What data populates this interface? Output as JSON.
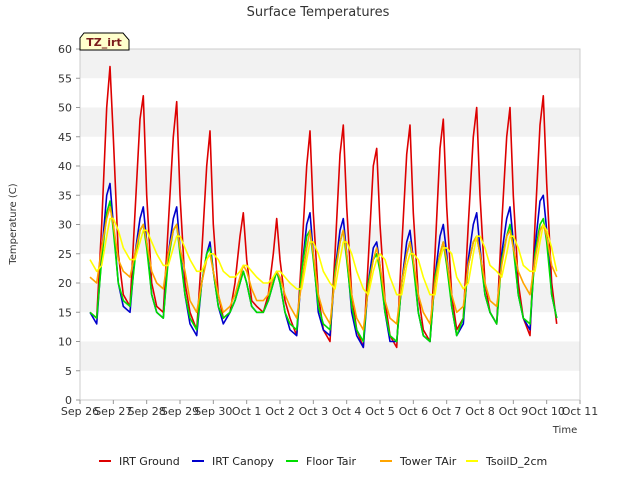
{
  "chart_data": {
    "type": "line",
    "title": "Surface Temperatures",
    "xlabel": "Time",
    "ylabel": "Temperature (C)",
    "ylim": [
      0,
      60
    ],
    "yticks": [
      0,
      5,
      10,
      15,
      20,
      25,
      30,
      35,
      40,
      45,
      50,
      55,
      60
    ],
    "xlim": [
      0,
      15
    ],
    "xtick_labels": [
      "Sep 26",
      "Sep 27",
      "Sep 28",
      "Sep 29",
      "Sep 30",
      "Oct 1",
      "Oct 2",
      "Oct 3",
      "Oct 4",
      "Oct 5",
      "Oct 6",
      "Oct 7",
      "Oct 8",
      "Oct 9",
      "Oct 10",
      "Oct 11"
    ],
    "badge": "TZ_irt",
    "grid": "horizontal bands",
    "legend_position": "bottom",
    "x_unit": "days since Sep 26 00:00",
    "series": [
      {
        "name": "IRT Ground",
        "color": "#dd0000",
        "x": [
          0.3,
          0.5,
          0.65,
          0.8,
          0.9,
          1.0,
          1.15,
          1.3,
          1.5,
          1.65,
          1.8,
          1.9,
          2.0,
          2.15,
          2.3,
          2.5,
          2.65,
          2.8,
          2.9,
          3.0,
          3.15,
          3.3,
          3.5,
          3.65,
          3.8,
          3.9,
          4.0,
          4.15,
          4.3,
          4.5,
          4.65,
          4.8,
          4.9,
          5.0,
          5.15,
          5.3,
          5.5,
          5.65,
          5.8,
          5.9,
          6.0,
          6.15,
          6.3,
          6.5,
          6.65,
          6.8,
          6.9,
          7.0,
          7.15,
          7.3,
          7.5,
          7.65,
          7.8,
          7.9,
          8.0,
          8.15,
          8.3,
          8.5,
          8.65,
          8.8,
          8.9,
          9.0,
          9.15,
          9.3,
          9.5,
          9.65,
          9.8,
          9.9,
          10.0,
          10.15,
          10.3,
          10.5,
          10.65,
          10.8,
          10.9,
          11.0,
          11.15,
          11.3,
          11.5,
          11.65,
          11.8,
          11.9,
          12.0,
          12.15,
          12.3,
          12.5,
          12.65,
          12.8,
          12.9,
          13.0,
          13.15,
          13.3,
          13.5,
          13.65,
          13.8,
          13.9,
          14.0,
          14.15,
          14.3
        ],
        "y": [
          15,
          14,
          30,
          50,
          57,
          45,
          25,
          18,
          16,
          32,
          48,
          52,
          35,
          20,
          16,
          15,
          30,
          45,
          51,
          35,
          20,
          15,
          12,
          25,
          40,
          46,
          30,
          18,
          14,
          15,
          20,
          28,
          32,
          24,
          17,
          16,
          15,
          18,
          25,
          31,
          24,
          17,
          14,
          11,
          25,
          40,
          46,
          32,
          18,
          12,
          10,
          25,
          42,
          47,
          33,
          18,
          12,
          9,
          24,
          40,
          43,
          30,
          17,
          11,
          9,
          26,
          42,
          47,
          32,
          18,
          12,
          10,
          25,
          43,
          48,
          33,
          18,
          12,
          14,
          30,
          45,
          50,
          35,
          20,
          15,
          13,
          30,
          45,
          50,
          35,
          20,
          14,
          11,
          30,
          47,
          52,
          37,
          20,
          13
        ]
      },
      {
        "name": "IRT Canopy",
        "color": "#0000cc",
        "x": [
          0.3,
          0.5,
          0.65,
          0.8,
          0.9,
          1.0,
          1.15,
          1.3,
          1.5,
          1.65,
          1.8,
          1.9,
          2.0,
          2.15,
          2.3,
          2.5,
          2.65,
          2.8,
          2.9,
          3.0,
          3.15,
          3.3,
          3.5,
          3.65,
          3.8,
          3.9,
          4.0,
          4.15,
          4.3,
          4.5,
          4.65,
          4.8,
          4.9,
          5.0,
          5.15,
          5.3,
          5.5,
          5.65,
          5.8,
          5.9,
          6.0,
          6.15,
          6.3,
          6.5,
          6.65,
          6.8,
          6.9,
          7.0,
          7.15,
          7.3,
          7.5,
          7.65,
          7.8,
          7.9,
          8.0,
          8.15,
          8.3,
          8.5,
          8.65,
          8.8,
          8.9,
          9.0,
          9.15,
          9.3,
          9.5,
          9.65,
          9.8,
          9.9,
          10.0,
          10.15,
          10.3,
          10.5,
          10.65,
          10.8,
          10.9,
          11.0,
          11.15,
          11.3,
          11.5,
          11.65,
          11.8,
          11.9,
          12.0,
          12.15,
          12.3,
          12.5,
          12.65,
          12.8,
          12.9,
          13.0,
          13.15,
          13.3,
          13.5,
          13.65,
          13.8,
          13.9,
          14.0,
          14.15,
          14.3
        ],
        "y": [
          15,
          13,
          25,
          35,
          37,
          30,
          20,
          16,
          15,
          25,
          31,
          33,
          27,
          18,
          15,
          14,
          25,
          31,
          33,
          26,
          18,
          13,
          11,
          20,
          25,
          27,
          22,
          16,
          13,
          15,
          17,
          20,
          22,
          20,
          16,
          15,
          15,
          17,
          20,
          22,
          20,
          15,
          12,
          11,
          22,
          30,
          32,
          25,
          15,
          12,
          11,
          22,
          29,
          31,
          25,
          15,
          11,
          9,
          20,
          26,
          27,
          23,
          15,
          10,
          10,
          20,
          27,
          29,
          24,
          15,
          11,
          10,
          21,
          28,
          30,
          25,
          16,
          11,
          13,
          24,
          30,
          32,
          26,
          18,
          15,
          13,
          25,
          31,
          33,
          27,
          18,
          14,
          12,
          26,
          34,
          35,
          29,
          18,
          14
        ]
      },
      {
        "name": "Floor Tair",
        "color": "#00dd00",
        "x": [
          0.3,
          0.5,
          0.65,
          0.8,
          0.9,
          1.0,
          1.15,
          1.3,
          1.5,
          1.65,
          1.8,
          1.9,
          2.0,
          2.15,
          2.3,
          2.5,
          2.65,
          2.8,
          2.9,
          3.0,
          3.15,
          3.3,
          3.5,
          3.65,
          3.8,
          3.9,
          4.0,
          4.15,
          4.3,
          4.5,
          4.65,
          4.8,
          4.9,
          5.0,
          5.15,
          5.3,
          5.5,
          5.65,
          5.8,
          5.9,
          6.0,
          6.15,
          6.3,
          6.5,
          6.65,
          6.8,
          6.9,
          7.0,
          7.15,
          7.3,
          7.5,
          7.65,
          7.8,
          7.9,
          8.0,
          8.15,
          8.3,
          8.5,
          8.65,
          8.8,
          8.9,
          9.0,
          9.15,
          9.3,
          9.5,
          9.65,
          9.8,
          9.9,
          10.0,
          10.15,
          10.3,
          10.5,
          10.65,
          10.8,
          10.9,
          11.0,
          11.15,
          11.3,
          11.5,
          11.65,
          11.8,
          11.9,
          12.0,
          12.15,
          12.3,
          12.5,
          12.65,
          12.8,
          12.9,
          13.0,
          13.15,
          13.3,
          13.5,
          13.65,
          13.8,
          13.9,
          14.0,
          14.15,
          14.3
        ],
        "y": [
          15,
          14,
          24,
          32,
          34,
          29,
          20,
          17,
          16,
          24,
          29,
          30,
          26,
          18,
          15,
          14,
          24,
          29,
          30,
          25,
          18,
          14,
          12,
          20,
          25,
          26,
          22,
          16,
          14,
          15,
          17,
          20,
          22,
          20,
          16,
          15,
          15,
          17,
          20,
          22,
          20,
          15,
          13,
          12,
          22,
          28,
          29,
          24,
          16,
          13,
          12,
          22,
          27,
          29,
          24,
          16,
          12,
          10,
          20,
          24,
          25,
          22,
          15,
          11,
          10,
          20,
          25,
          27,
          23,
          15,
          11,
          10,
          21,
          25,
          27,
          23,
          16,
          11,
          14,
          23,
          27,
          28,
          25,
          18,
          15,
          13,
          24,
          28,
          30,
          26,
          18,
          14,
          13,
          25,
          30,
          31,
          27,
          18,
          14
        ]
      },
      {
        "name": "Tower TAir",
        "color": "#ffa500",
        "x": [
          0.3,
          0.5,
          0.65,
          0.8,
          0.9,
          1.0,
          1.15,
          1.3,
          1.5,
          1.65,
          1.8,
          1.9,
          2.0,
          2.15,
          2.3,
          2.5,
          2.65,
          2.8,
          2.9,
          3.0,
          3.15,
          3.3,
          3.5,
          3.65,
          3.8,
          3.9,
          4.0,
          4.15,
          4.3,
          4.5,
          4.65,
          4.8,
          4.9,
          5.0,
          5.15,
          5.3,
          5.5,
          5.65,
          5.8,
          5.9,
          6.0,
          6.15,
          6.3,
          6.5,
          6.65,
          6.8,
          6.9,
          7.0,
          7.15,
          7.3,
          7.5,
          7.65,
          7.8,
          7.9,
          8.0,
          8.15,
          8.3,
          8.5,
          8.65,
          8.8,
          8.9,
          9.0,
          9.15,
          9.3,
          9.5,
          9.65,
          9.8,
          9.9,
          10.0,
          10.15,
          10.3,
          10.5,
          10.65,
          10.8,
          10.9,
          11.0,
          11.15,
          11.3,
          11.5,
          11.65,
          11.8,
          11.9,
          12.0,
          12.15,
          12.3,
          12.5,
          12.65,
          12.8,
          12.9,
          13.0,
          13.15,
          13.3,
          13.5,
          13.65,
          13.8,
          13.9,
          14.0,
          14.15,
          14.3
        ],
        "y": [
          21,
          20,
          26,
          31,
          33,
          30,
          24,
          22,
          21,
          25,
          29,
          30,
          27,
          22,
          20,
          19,
          25,
          29,
          30,
          26,
          22,
          17,
          15,
          20,
          24,
          25,
          22,
          18,
          15,
          16,
          18,
          21,
          23,
          22,
          19,
          17,
          17,
          18,
          21,
          22,
          21,
          18,
          16,
          14,
          20,
          26,
          29,
          25,
          18,
          15,
          13,
          21,
          27,
          29,
          25,
          18,
          14,
          12,
          19,
          24,
          26,
          23,
          17,
          14,
          13,
          20,
          25,
          27,
          24,
          18,
          15,
          13,
          20,
          25,
          27,
          24,
          18,
          15,
          16,
          23,
          27,
          28,
          25,
          20,
          17,
          16,
          23,
          28,
          29,
          26,
          22,
          20,
          18,
          24,
          29,
          30,
          28,
          23,
          21
        ]
      },
      {
        "name": "TsoilD_2cm",
        "color": "#ffff00",
        "x": [
          0.3,
          0.5,
          0.65,
          0.8,
          0.9,
          1.0,
          1.15,
          1.3,
          1.5,
          1.65,
          1.8,
          1.9,
          2.0,
          2.15,
          2.3,
          2.5,
          2.65,
          2.8,
          2.9,
          3.0,
          3.15,
          3.3,
          3.5,
          3.65,
          3.8,
          3.9,
          4.0,
          4.15,
          4.3,
          4.5,
          4.65,
          4.8,
          4.9,
          5.0,
          5.15,
          5.3,
          5.5,
          5.65,
          5.8,
          5.9,
          6.0,
          6.15,
          6.3,
          6.5,
          6.65,
          6.8,
          6.9,
          7.0,
          7.15,
          7.3,
          7.5,
          7.65,
          7.8,
          7.9,
          8.0,
          8.15,
          8.3,
          8.5,
          8.65,
          8.8,
          8.9,
          9.0,
          9.15,
          9.3,
          9.5,
          9.65,
          9.8,
          9.9,
          10.0,
          10.15,
          10.3,
          10.5,
          10.65,
          10.8,
          10.9,
          11.0,
          11.15,
          11.3,
          11.5,
          11.65,
          11.8,
          11.9,
          12.0,
          12.15,
          12.3,
          12.5,
          12.65,
          12.8,
          12.9,
          13.0,
          13.15,
          13.3,
          13.5,
          13.65,
          13.8,
          13.9,
          14.0,
          14.15,
          14.3
        ],
        "y": [
          24,
          22,
          23,
          28,
          31,
          31,
          29,
          26,
          24,
          24,
          27,
          29,
          29,
          27,
          25,
          23,
          23,
          26,
          28,
          28,
          26,
          24,
          22,
          22,
          24,
          25,
          25,
          24,
          22,
          21,
          21,
          22,
          23,
          23,
          22,
          21,
          20,
          20,
          21,
          22,
          22,
          21,
          20,
          19,
          19,
          24,
          27,
          27,
          25,
          22,
          20,
          19,
          24,
          27,
          27,
          25,
          22,
          19,
          18,
          22,
          24,
          25,
          24,
          21,
          18,
          18,
          23,
          25,
          25,
          24,
          21,
          18,
          18,
          24,
          26,
          26,
          25,
          21,
          19,
          20,
          25,
          28,
          28,
          26,
          23,
          22,
          21,
          25,
          28,
          28,
          26,
          23,
          22,
          22,
          27,
          30,
          29,
          26,
          22
        ]
      }
    ]
  }
}
